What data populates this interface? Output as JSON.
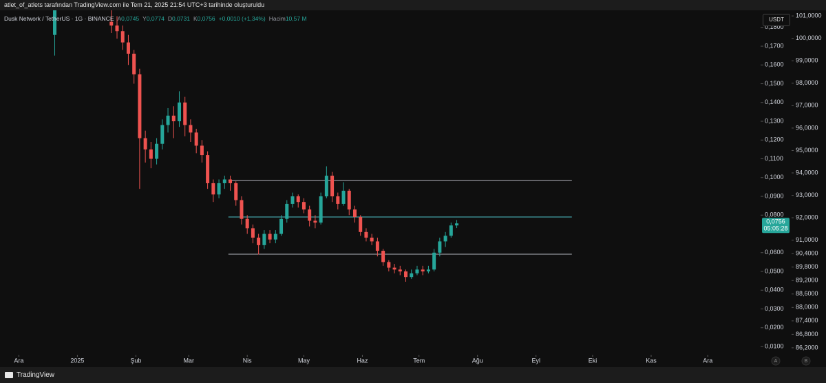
{
  "header": {
    "title": "atlet_of_atlets tarafından TradingView.com ile Tem 21, 2025 21:54 UTC+3 tarihinde oluşturuldu"
  },
  "legend": {
    "symbol": "Dusk Network / TetherUS · 1G · BINANCE",
    "keys": [
      "A",
      "Y",
      "D",
      "K"
    ],
    "values": [
      0.0745,
      0.0774,
      0.0731,
      0.0756
    ],
    "value_labels": [
      "0,0745",
      "0,0774",
      "0,0731",
      "0,0756"
    ],
    "change": "+0,0010 (+1,34%)",
    "volume_label": "Hacim",
    "volume": "10,57 M"
  },
  "currency": "USDT",
  "footer": {
    "brand": "TradingView"
  },
  "chart_data": {
    "type": "candlestick",
    "up_color": "#26a69a",
    "down_color": "#ef5350",
    "x": [
      -12,
      18,
      21,
      24,
      27,
      30,
      33,
      36,
      39,
      42,
      45,
      48,
      51,
      54,
      57,
      60,
      63,
      66,
      69,
      72,
      75,
      78,
      81,
      84,
      87,
      90,
      93,
      96,
      99,
      102,
      105,
      108,
      111,
      114,
      117,
      120,
      123,
      126,
      129,
      132,
      135,
      138,
      141,
      144,
      147,
      150,
      153,
      156,
      159,
      162,
      165,
      168,
      171,
      174,
      177,
      180,
      183,
      186,
      189,
      192,
      195,
      198,
      201
    ],
    "open": [
      0.176,
      0.183,
      0.181,
      0.178,
      0.172,
      0.166,
      0.155,
      0.121,
      0.115,
      0.11,
      0.118,
      0.128,
      0.133,
      0.13,
      0.14,
      0.128,
      0.124,
      0.117,
      0.112,
      0.097,
      0.091,
      0.097,
      0.099,
      0.097,
      0.088,
      0.078,
      0.073,
      0.068,
      0.064,
      0.07,
      0.067,
      0.07,
      0.078,
      0.086,
      0.09,
      0.087,
      0.083,
      0.077,
      0.076,
      0.09,
      0.101,
      0.09,
      0.086,
      0.093,
      0.083,
      0.079,
      0.071,
      0.068,
      0.066,
      0.061,
      0.055,
      0.052,
      0.051,
      0.05,
      0.047,
      0.049,
      0.051,
      0.05,
      0.051,
      0.06,
      0.066,
      0.069,
      0.0745
    ],
    "high": [
      0.194,
      0.19,
      0.186,
      0.181,
      0.176,
      0.168,
      0.158,
      0.125,
      0.119,
      0.121,
      0.131,
      0.137,
      0.138,
      0.146,
      0.143,
      0.131,
      0.126,
      0.12,
      0.114,
      0.099,
      0.099,
      0.101,
      0.101,
      0.098,
      0.09,
      0.08,
      0.075,
      0.07,
      0.072,
      0.072,
      0.072,
      0.08,
      0.088,
      0.092,
      0.091,
      0.089,
      0.085,
      0.08,
      0.092,
      0.106,
      0.103,
      0.092,
      0.0975,
      0.094,
      0.085,
      0.08,
      0.073,
      0.07,
      0.068,
      0.062,
      0.056,
      0.054,
      0.053,
      0.051,
      0.051,
      0.053,
      0.053,
      0.053,
      0.062,
      0.068,
      0.071,
      0.076,
      0.0774
    ],
    "low": [
      0.165,
      0.177,
      0.174,
      0.168,
      0.16,
      0.15,
      0.094,
      0.108,
      0.105,
      0.107,
      0.115,
      0.124,
      0.121,
      0.127,
      0.122,
      0.119,
      0.113,
      0.108,
      0.094,
      0.087,
      0.089,
      0.094,
      0.093,
      0.085,
      0.075,
      0.07,
      0.065,
      0.059,
      0.062,
      0.065,
      0.065,
      0.069,
      0.076,
      0.084,
      0.084,
      0.081,
      0.074,
      0.073,
      0.075,
      0.089,
      0.087,
      0.083,
      0.085,
      0.08,
      0.076,
      0.069,
      0.066,
      0.064,
      0.058,
      0.053,
      0.05,
      0.049,
      0.048,
      0.0445,
      0.046,
      0.048,
      0.048,
      0.049,
      0.05,
      0.058,
      0.063,
      0.068,
      0.0731
    ],
    "close": [
      0.19,
      0.181,
      0.178,
      0.172,
      0.166,
      0.155,
      0.121,
      0.115,
      0.11,
      0.118,
      0.128,
      0.133,
      0.13,
      0.14,
      0.128,
      0.124,
      0.117,
      0.112,
      0.097,
      0.091,
      0.097,
      0.099,
      0.097,
      0.088,
      0.078,
      0.073,
      0.068,
      0.064,
      0.07,
      0.067,
      0.07,
      0.078,
      0.086,
      0.09,
      0.087,
      0.083,
      0.077,
      0.076,
      0.09,
      0.101,
      0.09,
      0.086,
      0.093,
      0.083,
      0.079,
      0.071,
      0.068,
      0.066,
      0.061,
      0.055,
      0.052,
      0.051,
      0.05,
      0.047,
      0.049,
      0.051,
      0.05,
      0.051,
      0.06,
      0.066,
      0.069,
      0.0745,
      0.0756
    ],
    "xlim": [
      -41,
      362
    ],
    "xticks": [
      {
        "value": -31,
        "label": "Ara"
      },
      {
        "value": 0,
        "label": "2025"
      },
      {
        "value": 31,
        "label": "Şub"
      },
      {
        "value": 59,
        "label": "Mar"
      },
      {
        "value": 90,
        "label": "Nis"
      },
      {
        "value": 120,
        "label": "May"
      },
      {
        "value": 151,
        "label": "Haz"
      },
      {
        "value": 181,
        "label": "Tem"
      },
      {
        "value": 212,
        "label": "Ağu"
      },
      {
        "value": 243,
        "label": "Eyl"
      },
      {
        "value": 273,
        "label": "Eki"
      },
      {
        "value": 304,
        "label": "Kas"
      },
      {
        "value": 334,
        "label": "Ara"
      }
    ],
    "ylim": [
      0.0056,
      0.1891
    ],
    "yticks": [
      {
        "value": 0.18,
        "label": "0,1800"
      },
      {
        "value": 0.17,
        "label": "0,1700"
      },
      {
        "value": 0.16,
        "label": "0,1600"
      },
      {
        "value": 0.15,
        "label": "0,1500"
      },
      {
        "value": 0.14,
        "label": "0,1400"
      },
      {
        "value": 0.13,
        "label": "0,1300"
      },
      {
        "value": 0.12,
        "label": "0,1200"
      },
      {
        "value": 0.11,
        "label": "0,1100"
      },
      {
        "value": 0.1,
        "label": "0,1000"
      },
      {
        "value": 0.09,
        "label": "0,0900"
      },
      {
        "value": 0.08,
        "label": "0,0800"
      },
      {
        "value": 0.06,
        "label": "0,0600"
      },
      {
        "value": 0.05,
        "label": "0,0500"
      },
      {
        "value": 0.04,
        "label": "0,0400"
      },
      {
        "value": 0.03,
        "label": "0,0300"
      },
      {
        "value": 0.02,
        "label": "0,0200"
      },
      {
        "value": 0.01,
        "label": "0,0100"
      }
    ],
    "y2lim": [
      85.89,
      101.25
    ],
    "y2ticks": [
      {
        "value": 101,
        "label": "101,0000"
      },
      {
        "value": 100,
        "label": "100,0000"
      },
      {
        "value": 99,
        "label": "99,0000"
      },
      {
        "value": 98,
        "label": "98,0000"
      },
      {
        "value": 97,
        "label": "97,0000"
      },
      {
        "value": 96,
        "label": "96,0000"
      },
      {
        "value": 95,
        "label": "95,0000"
      },
      {
        "value": 94,
        "label": "94,0000"
      },
      {
        "value": 93,
        "label": "93,0000"
      },
      {
        "value": 92,
        "label": "92,0000"
      },
      {
        "value": 91,
        "label": "91,0000"
      },
      {
        "value": 90.4,
        "label": "90,4000"
      },
      {
        "value": 89.8,
        "label": "89,8000"
      },
      {
        "value": 89.2,
        "label": "89,2000"
      },
      {
        "value": 88.6,
        "label": "88,6000"
      },
      {
        "value": 88,
        "label": "88,0000"
      },
      {
        "value": 87.4,
        "label": "87,4000"
      },
      {
        "value": 86.8,
        "label": "86,8000"
      },
      {
        "value": 86.2,
        "label": "86,2000"
      }
    ],
    "hlines": [
      {
        "value": 0.0984,
        "from": 80,
        "to": 262,
        "color": "#b2b5be"
      },
      {
        "value": 0.079,
        "from": 80,
        "to": 262,
        "color": "#4fc3c8"
      },
      {
        "value": 0.0592,
        "from": 80,
        "to": 262,
        "color": "#b2b5be"
      }
    ],
    "last_price": {
      "value": 0.0756,
      "label": "0,0756"
    },
    "countdown": "05:05:28",
    "axis_buttons": [
      "A",
      "B"
    ]
  }
}
